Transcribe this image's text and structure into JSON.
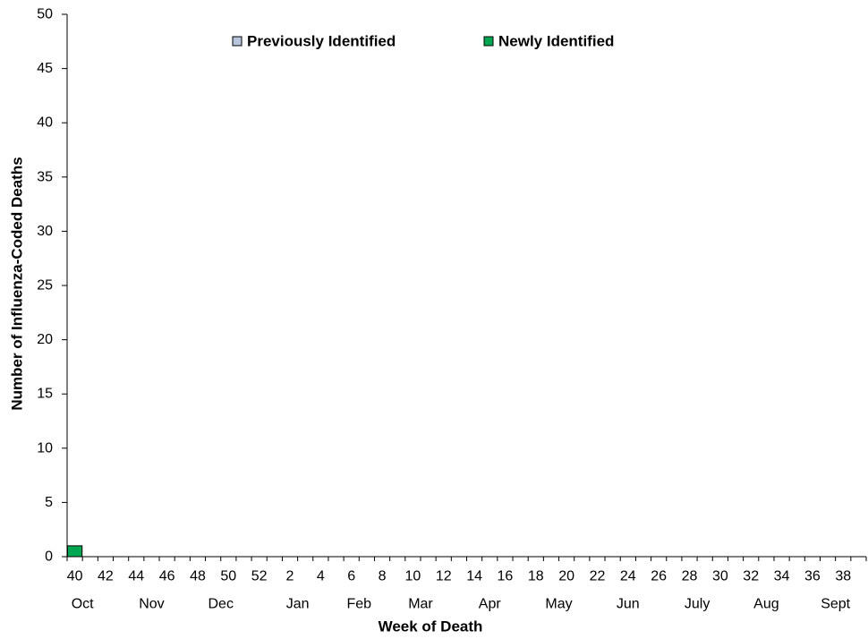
{
  "chart_data": {
    "type": "bar",
    "stacked": true,
    "title": "",
    "xlabel": "Week of Death",
    "ylabel": "Number of Influenza-Coded Deaths",
    "ylim": [
      0,
      50
    ],
    "y_ticks": [
      "0",
      "5",
      "10",
      "15",
      "20",
      "25",
      "30",
      "35",
      "40",
      "45",
      "50"
    ],
    "x_tick_labels": [
      "40",
      "42",
      "44",
      "46",
      "48",
      "50",
      "52",
      "2",
      "4",
      "6",
      "8",
      "10",
      "12",
      "14",
      "16",
      "18",
      "20",
      "22",
      "24",
      "26",
      "28",
      "30",
      "32",
      "34",
      "36",
      "38"
    ],
    "month_labels": [
      {
        "label": "Oct",
        "week_index": 0.5
      },
      {
        "label": "Nov",
        "week_index": 5
      },
      {
        "label": "Dec",
        "week_index": 9.5
      },
      {
        "label": "Jan",
        "week_index": 14.5
      },
      {
        "label": "Feb",
        "week_index": 18.5
      },
      {
        "label": "Mar",
        "week_index": 22.5
      },
      {
        "label": "Apr",
        "week_index": 27
      },
      {
        "label": "May",
        "week_index": 31.5
      },
      {
        "label": "Jun",
        "week_index": 36
      },
      {
        "label": "July",
        "week_index": 40.5
      },
      {
        "label": "Aug",
        "week_index": 45
      },
      {
        "label": "Sept",
        "week_index": 49.5
      }
    ],
    "x": [
      40,
      41,
      42,
      43,
      44,
      45,
      46,
      47,
      48,
      49,
      50,
      51,
      52,
      1,
      2,
      3,
      4,
      5,
      6,
      7,
      8,
      9,
      10,
      11,
      12,
      13,
      14,
      15,
      16,
      17,
      18,
      19,
      20,
      21,
      22,
      23,
      24,
      25,
      26,
      27,
      28,
      29,
      30,
      31,
      32,
      33,
      34,
      35,
      36,
      37,
      38,
      39
    ],
    "series": [
      {
        "name": "Previously Identified",
        "color": "#b8c4dc",
        "values": [
          0,
          0,
          0,
          0,
          0,
          0,
          0,
          0,
          0,
          0,
          0,
          0,
          0,
          0,
          0,
          0,
          0,
          0,
          0,
          0,
          0,
          0,
          0,
          0,
          0,
          0,
          0,
          0,
          0,
          0,
          0,
          0,
          0,
          0,
          0,
          0,
          0,
          0,
          0,
          0,
          0,
          0,
          0,
          0,
          0,
          0,
          0,
          0,
          0,
          0,
          0,
          0
        ]
      },
      {
        "name": "Newly Identified",
        "color": "#00a651",
        "values": [
          1,
          0,
          0,
          0,
          0,
          0,
          0,
          0,
          0,
          0,
          0,
          0,
          0,
          0,
          0,
          0,
          0,
          0,
          0,
          0,
          0,
          0,
          0,
          0,
          0,
          0,
          0,
          0,
          0,
          0,
          0,
          0,
          0,
          0,
          0,
          0,
          0,
          0,
          0,
          0,
          0,
          0,
          0,
          0,
          0,
          0,
          0,
          0,
          0,
          0,
          0,
          0
        ]
      }
    ],
    "legend_position": "top-center",
    "grid": false
  }
}
